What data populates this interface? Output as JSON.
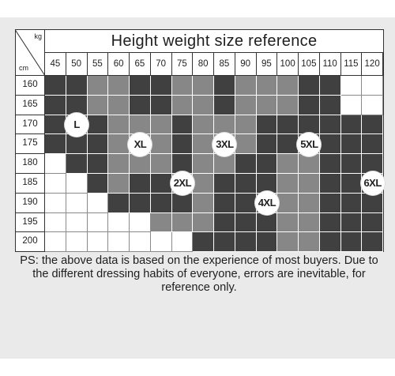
{
  "chart_data": {
    "type": "table",
    "title": "Height weight size reference",
    "corner_top": "kg",
    "corner_bottom": "cm",
    "weights": [
      "45",
      "50",
      "55",
      "60",
      "65",
      "70",
      "75",
      "80",
      "85",
      "90",
      "95",
      "100",
      "105",
      "110",
      "115",
      "120"
    ],
    "heights": [
      "160",
      "165",
      "170",
      "175",
      "180",
      "185",
      "190",
      "195",
      "200"
    ],
    "colors": {
      "dark": "#404040",
      "mid": "#878787",
      "white": "#ffffff"
    },
    "grid": [
      "DDMMDDMMDMMMDDWW",
      "DDMMDDMMDMMMDDWW",
      "DDDMMMDMMMDDDDDD",
      "DDDMMMDMMMDDDDDD",
      "WDDMMMDMMDDMMDDD",
      "WWDMDDMMDDDMMDDD",
      "WWWDDDDMDDDMMDDD",
      "WWWWWMMMDDDMMDDD",
      "WWWWWWWDDDDMMDDD"
    ],
    "size_labels": [
      {
        "label": "L",
        "row": 2,
        "col": 1
      },
      {
        "label": "XL",
        "row": 3,
        "col": 4
      },
      {
        "label": "2XL",
        "row": 5,
        "col": 6
      },
      {
        "label": "3XL",
        "row": 3,
        "col": 8
      },
      {
        "label": "4XL",
        "row": 6,
        "col": 10
      },
      {
        "label": "5XL",
        "row": 3,
        "col": 12
      },
      {
        "label": "6XL",
        "row": 5,
        "col": 15
      }
    ]
  },
  "note": "PS: the above data is based on the experience of most buyers. Due to the different dressing habits of everyone, errors are inevitable, for reference only."
}
